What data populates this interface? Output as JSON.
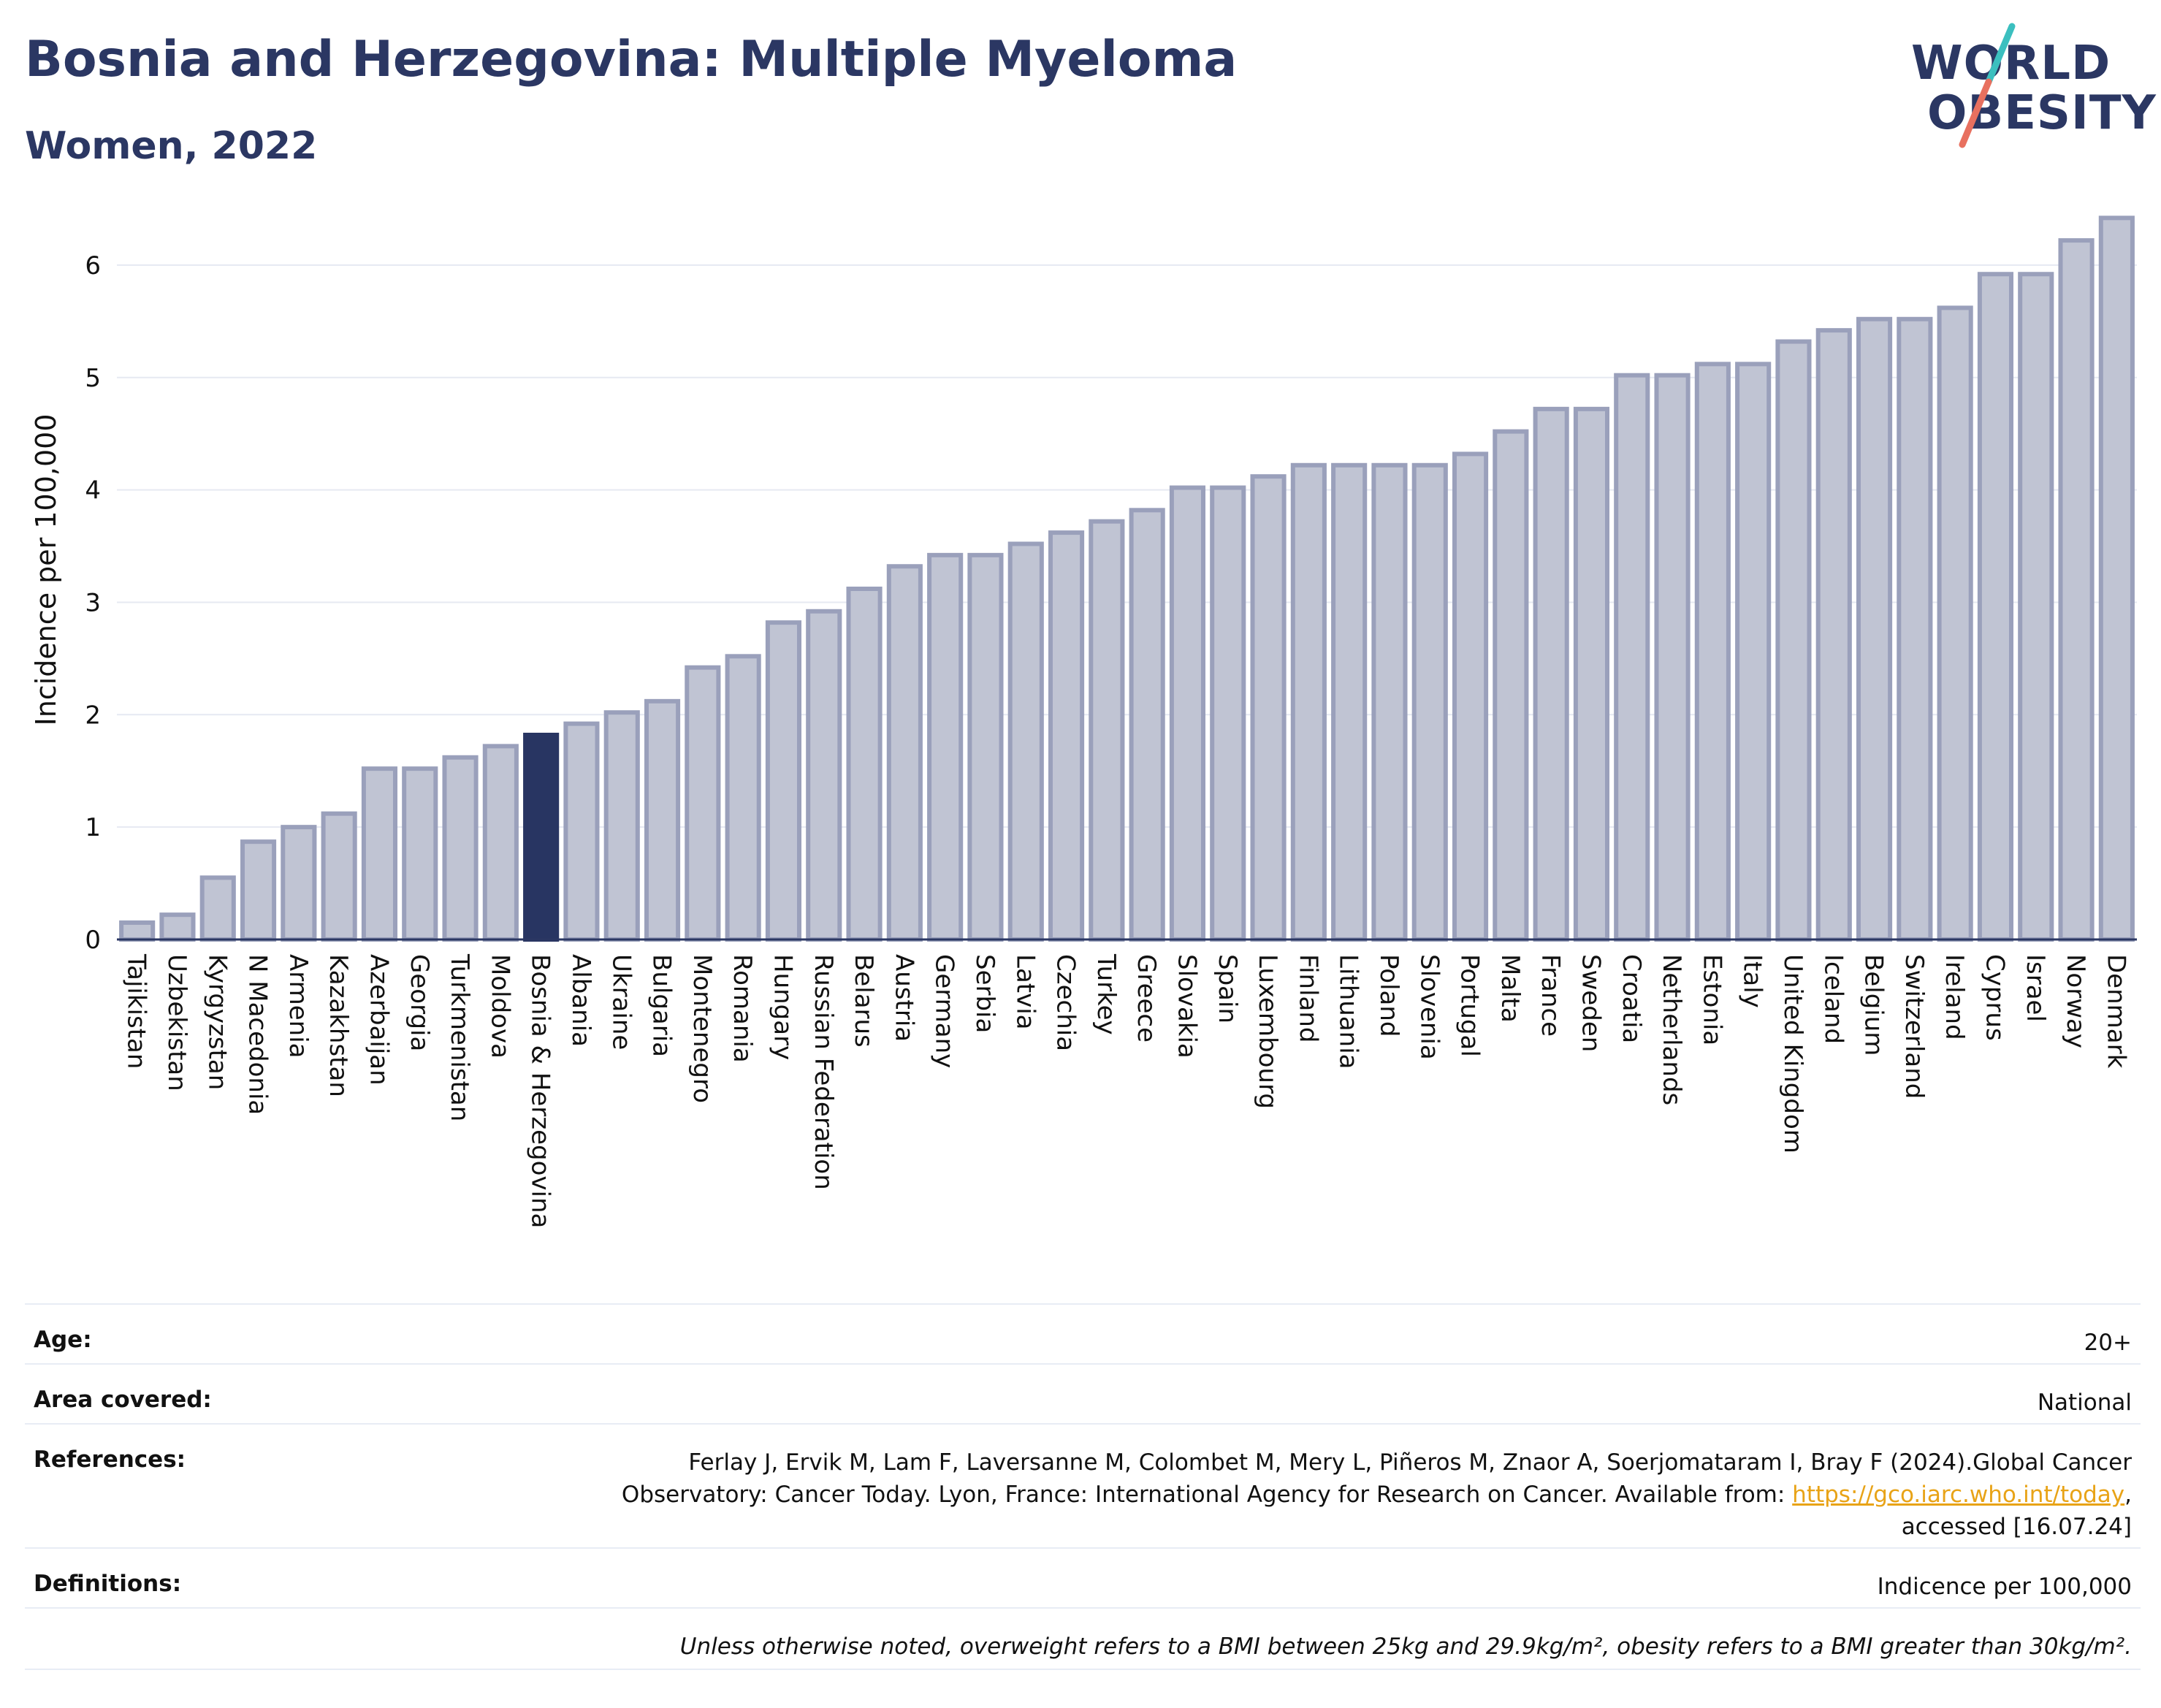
{
  "title": "Bosnia and Herzegovina: Multiple Myeloma",
  "subtitle": "Women, 2022",
  "logo": {
    "line1": "WORLD",
    "line2": "OBESITY"
  },
  "colors": {
    "bar": "#c0c4d3",
    "bar_stroke": "#9aa0bb",
    "highlight": "#283562",
    "title": "#2b3763",
    "grid": "#e6e9f2",
    "link": "#e8a317",
    "logo_teal": "#3bbfbf",
    "logo_red": "#e8705f"
  },
  "chart_data": {
    "type": "bar",
    "ylabel": "Incidence per 100,000",
    "ylim": [
      0,
      6.5
    ],
    "yticks": [
      0,
      1,
      2,
      3,
      4,
      5,
      6
    ],
    "highlight": "Bosnia & Herzegovina",
    "categories": [
      "Tajikistan",
      "Uzbekistan",
      "Kyrgyzstan",
      "N Macedonia",
      "Armenia",
      "Kazakhstan",
      "Azerbaijan",
      "Georgia",
      "Turkmenistan",
      "Moldova",
      "Bosnia & Herzegovina",
      "Albania",
      "Ukraine",
      "Bulgaria",
      "Montenegro",
      "Romania",
      "Hungary",
      "Russian Federation",
      "Belarus",
      "Austria",
      "Germany",
      "Serbia",
      "Latvia",
      "Czechia",
      "Turkey",
      "Greece",
      "Slovakia",
      "Spain",
      "Luxembourg",
      "Finland",
      "Lithuania",
      "Poland",
      "Slovenia",
      "Portugal",
      "Malta",
      "France",
      "Sweden",
      "Croatia",
      "Netherlands",
      "Estonia",
      "Italy",
      "United Kingdom",
      "Iceland",
      "Belgium",
      "Switzerland",
      "Ireland",
      "Cyprus",
      "Israel",
      "Norway",
      "Denmark"
    ],
    "values": [
      0.15,
      0.22,
      0.55,
      0.87,
      1.0,
      1.12,
      1.52,
      1.52,
      1.62,
      1.72,
      1.82,
      1.92,
      2.02,
      2.12,
      2.42,
      2.52,
      2.82,
      2.92,
      3.12,
      3.32,
      3.42,
      3.42,
      3.52,
      3.62,
      3.72,
      3.82,
      4.02,
      4.02,
      4.12,
      4.22,
      4.22,
      4.22,
      4.22,
      4.32,
      4.52,
      4.72,
      4.72,
      5.02,
      5.02,
      5.12,
      5.12,
      5.32,
      5.42,
      5.52,
      5.52,
      5.62,
      5.92,
      5.92,
      6.22,
      6.42
    ]
  },
  "info": {
    "age_label": "Age:",
    "age_value": "20+",
    "area_label": "Area covered:",
    "area_value": "National",
    "ref_label": "References:",
    "ref_line1": "Ferlay J, Ervik M, Lam F, Laversanne M, Colombet M, Mery L, Piñeros M, Znaor A, Soerjomataram I, Bray F (2024).Global Cancer",
    "ref_line2_pre": "Observatory: Cancer Today. Lyon, France: International Agency for Research on Cancer. Available from: ",
    "ref_link": "https://gco.iarc.who.int/today",
    "ref_line2_post": ",",
    "ref_line3": "accessed [16.07.24]",
    "def_label": "Definitions:",
    "def_value": "Indicence per 100,000",
    "note": "Unless otherwise noted, overweight refers to a BMI between 25kg and 29.9kg/m², obesity refers to a BMI greater than 30kg/m²."
  }
}
